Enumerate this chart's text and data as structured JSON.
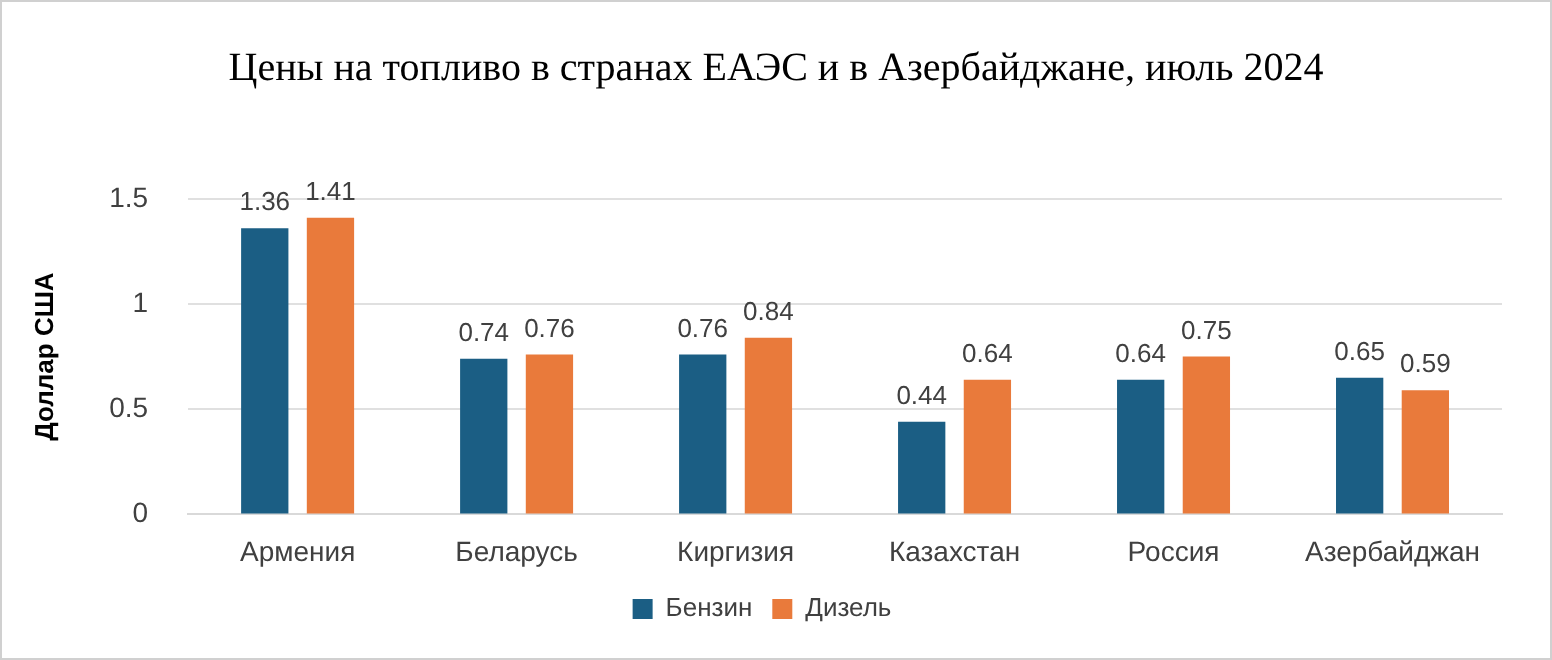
{
  "chart_data": {
    "type": "bar",
    "title": "Цены на топливо в странах ЕАЭС и в Азербайджане, июль 2024",
    "ylabel": "Доллар США",
    "categories": [
      "Армения",
      "Беларусь",
      "Киргизия",
      "Казахстан",
      "Россия",
      "Азербайджан"
    ],
    "series": [
      {
        "name": "Бензин",
        "color": "#1b5e84",
        "values": [
          1.36,
          0.74,
          0.76,
          0.44,
          0.64,
          0.65
        ]
      },
      {
        "name": "Дизель",
        "color": "#e97a3b",
        "values": [
          1.41,
          0.76,
          0.84,
          0.64,
          0.75,
          0.59
        ]
      }
    ],
    "ylim": [
      0,
      1.5
    ],
    "yticks": [
      0,
      0.5,
      1,
      1.5
    ],
    "grid": "y",
    "legend": "bottom",
    "data_labels": true
  }
}
